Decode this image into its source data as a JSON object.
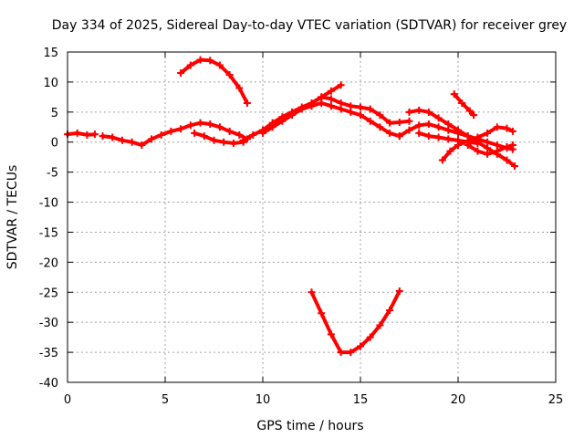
{
  "chart_data": {
    "type": "scatter",
    "title": "Day 334 of 2025, Sidereal Day-to-day VTEC variation (SDTVAR) for receiver grey",
    "xlabel": "GPS time / hours",
    "ylabel": "SDTVAR / TECUs",
    "xlim": [
      0,
      25
    ],
    "ylim": [
      -40,
      15
    ],
    "xticks": [
      0,
      5,
      10,
      15,
      20,
      25
    ],
    "yticks": [
      15,
      10,
      5,
      0,
      -5,
      -10,
      -15,
      -20,
      -25,
      -30,
      -35,
      -40
    ],
    "grid": true,
    "marker": "+",
    "color": "#ff0000",
    "series": [
      {
        "name": "s1",
        "points": [
          [
            0,
            1.3
          ],
          [
            0.5,
            1.5
          ],
          [
            1,
            1.2
          ],
          [
            1.4,
            1.3
          ]
        ]
      },
      {
        "name": "s2",
        "points": [
          [
            1.8,
            1.0
          ],
          [
            2.3,
            0.8
          ],
          [
            2.8,
            0.3
          ],
          [
            3.3,
            0.0
          ],
          [
            3.8,
            -0.5
          ],
          [
            4.3,
            0.5
          ],
          [
            4.8,
            1.2
          ],
          [
            5.3,
            1.8
          ],
          [
            5.8,
            2.2
          ],
          [
            6.3,
            2.8
          ],
          [
            6.8,
            3.2
          ],
          [
            7.3,
            3.0
          ],
          [
            7.8,
            2.5
          ],
          [
            8.3,
            1.8
          ],
          [
            8.8,
            1.2
          ],
          [
            9.2,
            0.5
          ]
        ]
      },
      {
        "name": "s3",
        "points": [
          [
            6.5,
            1.5
          ],
          [
            7,
            1.0
          ],
          [
            7.5,
            0.3
          ],
          [
            8,
            0.0
          ],
          [
            8.5,
            -0.2
          ],
          [
            9,
            0.0
          ]
        ]
      },
      {
        "name": "s4",
        "points": [
          [
            9,
            0.3
          ],
          [
            9.5,
            1.2
          ],
          [
            10,
            2.0
          ],
          [
            10.5,
            3.2
          ],
          [
            11,
            4.2
          ],
          [
            11.5,
            5.0
          ],
          [
            12,
            5.8
          ],
          [
            12.5,
            6.5
          ],
          [
            13,
            7.5
          ],
          [
            13.5,
            8.5
          ],
          [
            14,
            9.5
          ]
        ]
      },
      {
        "name": "s5",
        "points": [
          [
            10,
            1.5
          ],
          [
            10.5,
            2.5
          ],
          [
            11,
            3.5
          ],
          [
            11.5,
            4.5
          ],
          [
            12,
            5.5
          ],
          [
            12.5,
            6.0
          ],
          [
            13,
            6.5
          ],
          [
            13.5,
            6.0
          ],
          [
            14,
            5.5
          ],
          [
            14.5,
            5.0
          ],
          [
            15,
            4.5
          ],
          [
            15.5,
            3.5
          ],
          [
            16,
            2.5
          ],
          [
            16.5,
            1.5
          ],
          [
            17,
            1.0
          ]
        ]
      },
      {
        "name": "s6",
        "points": [
          [
            12.5,
            6.5
          ],
          [
            13,
            7.5
          ],
          [
            13.5,
            7.2
          ],
          [
            14,
            6.5
          ],
          [
            14.5,
            6.0
          ],
          [
            15,
            5.8
          ],
          [
            15.5,
            5.5
          ],
          [
            16,
            4.5
          ],
          [
            16.5,
            3.2
          ],
          [
            17,
            3.3
          ],
          [
            17.5,
            3.5
          ]
        ]
      },
      {
        "name": "s7",
        "points": [
          [
            5.8,
            11.5
          ],
          [
            6.3,
            12.8
          ],
          [
            6.8,
            13.7
          ],
          [
            7.3,
            13.6
          ],
          [
            7.8,
            12.8
          ],
          [
            8.3,
            11.2
          ],
          [
            8.8,
            9.0
          ],
          [
            9.2,
            6.5
          ]
        ]
      },
      {
        "name": "s8",
        "points": [
          [
            17,
            1.0
          ],
          [
            17.5,
            2.0
          ],
          [
            18,
            2.8
          ],
          [
            18.5,
            3.0
          ],
          [
            19,
            2.5
          ],
          [
            19.5,
            2.0
          ],
          [
            20,
            1.5
          ],
          [
            20.5,
            1.0
          ],
          [
            21,
            0.5
          ],
          [
            21.5,
            0.0
          ],
          [
            22,
            -0.5
          ],
          [
            22.5,
            -1.0
          ],
          [
            22.8,
            -1.2
          ]
        ]
      },
      {
        "name": "s9",
        "points": [
          [
            17.5,
            5.0
          ],
          [
            18,
            5.3
          ],
          [
            18.5,
            5.0
          ],
          [
            19,
            4.0
          ],
          [
            19.5,
            3.0
          ],
          [
            20,
            2.0
          ],
          [
            20.5,
            1.0
          ],
          [
            21,
            0.0
          ],
          [
            21.5,
            -1.0
          ],
          [
            22,
            -2.0
          ],
          [
            22.5,
            -3.0
          ],
          [
            22.9,
            -4.0
          ]
        ]
      },
      {
        "name": "s10",
        "points": [
          [
            19.8,
            8.0
          ],
          [
            20.2,
            6.5
          ],
          [
            20.6,
            5.2
          ],
          [
            20.8,
            4.5
          ]
        ]
      },
      {
        "name": "s11",
        "points": [
          [
            19.2,
            -3.0
          ],
          [
            19.6,
            -1.5
          ],
          [
            20,
            -0.5
          ],
          [
            20.5,
            0.2
          ],
          [
            21,
            0.8
          ],
          [
            21.5,
            1.5
          ],
          [
            22,
            2.5
          ],
          [
            22.5,
            2.3
          ],
          [
            22.8,
            1.8
          ]
        ]
      },
      {
        "name": "s12",
        "points": [
          [
            20.5,
            -0.5
          ],
          [
            21,
            -1.5
          ],
          [
            21.5,
            -2.0
          ],
          [
            22,
            -1.5
          ],
          [
            22.5,
            -0.8
          ],
          [
            22.8,
            -0.5
          ]
        ]
      },
      {
        "name": "s13",
        "points": [
          [
            18,
            1.5
          ],
          [
            18.5,
            1.0
          ],
          [
            19,
            0.8
          ],
          [
            19.5,
            0.5
          ],
          [
            20,
            0.3
          ],
          [
            20.5,
            0.0
          ],
          [
            21,
            -0.2
          ]
        ]
      },
      {
        "name": "s14",
        "points": [
          [
            12.5,
            -25
          ],
          [
            13,
            -28.5
          ],
          [
            13.5,
            -32
          ],
          [
            14,
            -35
          ],
          [
            14.5,
            -35
          ],
          [
            15,
            -34
          ],
          [
            15.5,
            -32.5
          ],
          [
            16,
            -30.5
          ],
          [
            16.5,
            -28
          ],
          [
            17,
            -24.8
          ]
        ]
      }
    ]
  }
}
